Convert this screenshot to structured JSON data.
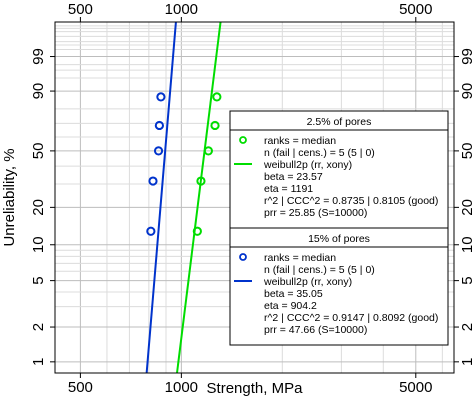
{
  "chart_data": {
    "type": "scatter",
    "xlabel": "Strength, MPa",
    "ylabel": "Unreliability, %",
    "x_scale": "log",
    "y_scale": "weibull",
    "xlim": [
      420,
      6500
    ],
    "ylim": [
      0.8,
      99.99
    ],
    "x_ticks": [
      500,
      1000,
      5000
    ],
    "x_tick_labels": [
      "500",
      "1000",
      "5000"
    ],
    "y_ticks": [
      1,
      2,
      5,
      10,
      20,
      50,
      90,
      99
    ],
    "y_tick_labels": [
      "1",
      "2",
      "5",
      "10",
      "20",
      "50",
      "90",
      "99"
    ],
    "grid": true,
    "series": [
      {
        "name": "2.5% of pores",
        "color": "#00dd00",
        "points": [
          {
            "x": 1116,
            "y": 12.9
          },
          {
            "x": 1144,
            "y": 31.5
          },
          {
            "x": 1204,
            "y": 50
          },
          {
            "x": 1260,
            "y": 68.5
          },
          {
            "x": 1276,
            "y": 87.1
          }
        ],
        "fit_line": {
          "beta": 23.57,
          "eta": 1191
        }
      },
      {
        "name": "15% of pores",
        "color": "#0033cc",
        "points": [
          {
            "x": 811,
            "y": 12.9
          },
          {
            "x": 823,
            "y": 31.5
          },
          {
            "x": 855,
            "y": 50
          },
          {
            "x": 860,
            "y": 68.5
          },
          {
            "x": 869,
            "y": 87.1
          }
        ],
        "fit_line": {
          "beta": 35.05,
          "eta": 904.2
        }
      }
    ],
    "legends": [
      {
        "title": "2.5% of pores",
        "color": "#00dd00",
        "lines": [
          "ranks = median",
          "n (fail | cens.) = 5 (5 | 0)",
          "weibull2p (rr, xony)",
          "beta = 23.57",
          "eta = 1191",
          "r^2 | CCC^2 = 0.8735 | 0.8105 (good)",
          "prr = 25.85 (S=10000)"
        ]
      },
      {
        "title": "15% of pores",
        "color": "#0033cc",
        "lines": [
          "ranks = median",
          "n (fail | cens.) = 5 (5 | 0)",
          "weibull2p (rr, xony)",
          "beta = 35.05",
          "eta = 904.2",
          "r^2 | CCC^2 = 0.9147 | 0.8092 (good)",
          "prr = 47.66 (S=10000)"
        ]
      }
    ]
  }
}
